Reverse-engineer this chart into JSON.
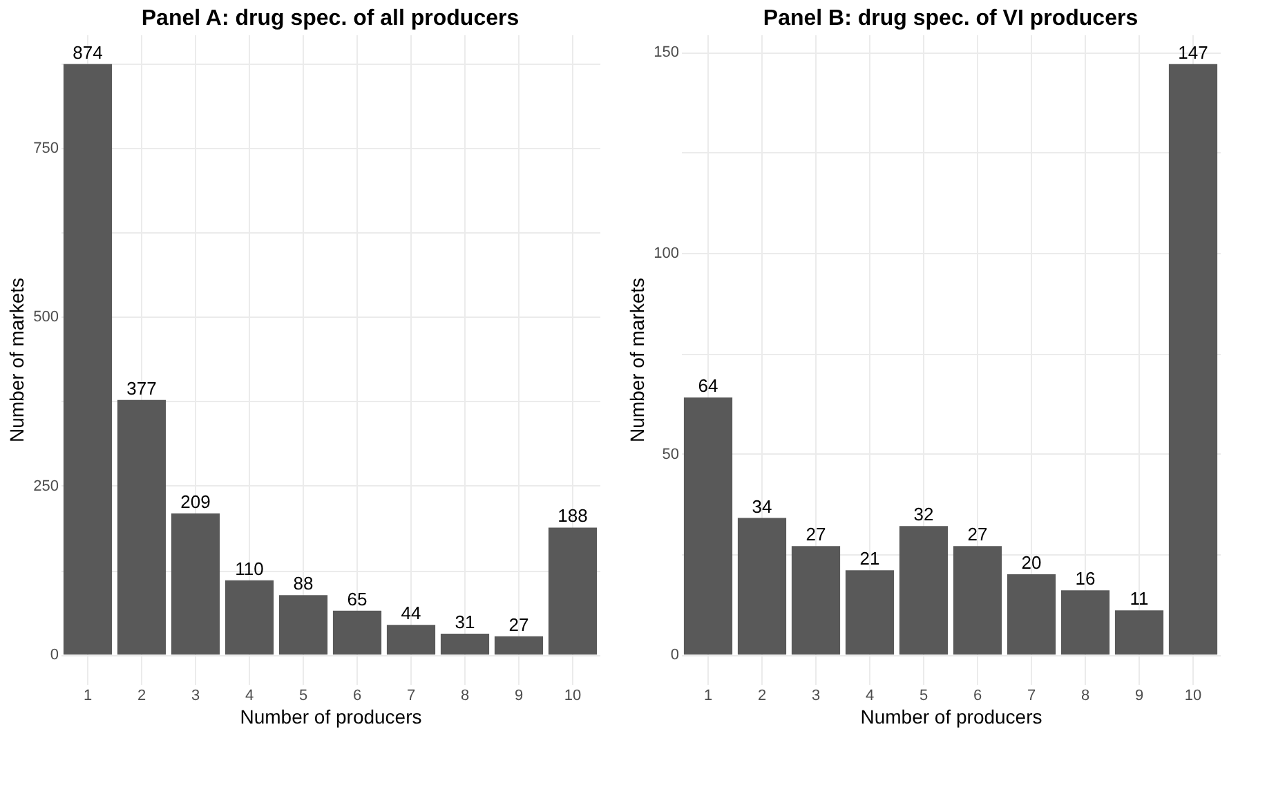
{
  "chart_data": [
    {
      "type": "bar",
      "title": "Panel A: drug spec. of all producers",
      "xlabel": "Number of producers",
      "ylabel": "Number of markets",
      "categories": [
        "1",
        "2",
        "3",
        "4",
        "5",
        "6",
        "7",
        "8",
        "9",
        "10"
      ],
      "values": [
        874,
        377,
        209,
        110,
        88,
        65,
        44,
        31,
        27,
        188
      ],
      "color": "#595959",
      "ylim": [
        -43.7,
        917.7
      ],
      "yticks": [
        0,
        {
          "value": 125,
          "label": null
        },
        250,
        {
          "value": 375,
          "label": null
        },
        500,
        {
          "value": 625,
          "label": null
        },
        750,
        {
          "value": 875,
          "label": null
        }
      ],
      "grid": true,
      "data_labels": true
    },
    {
      "type": "bar",
      "title": "Panel B: drug spec. of VI producers",
      "xlabel": "Number of producers",
      "ylabel": "Number of markets",
      "categories": [
        "1",
        "2",
        "3",
        "4",
        "5",
        "6",
        "7",
        "8",
        "9",
        "10"
      ],
      "values": [
        64,
        34,
        27,
        21,
        32,
        27,
        20,
        16,
        11,
        147
      ],
      "color": "#595959",
      "ylim": [
        -7.35,
        154.35
      ],
      "yticks": [
        0,
        {
          "value": 25,
          "label": null
        },
        50,
        {
          "value": 75,
          "label": null
        },
        100,
        {
          "value": 125,
          "label": null
        },
        150
      ],
      "grid": true,
      "data_labels": true
    }
  ]
}
